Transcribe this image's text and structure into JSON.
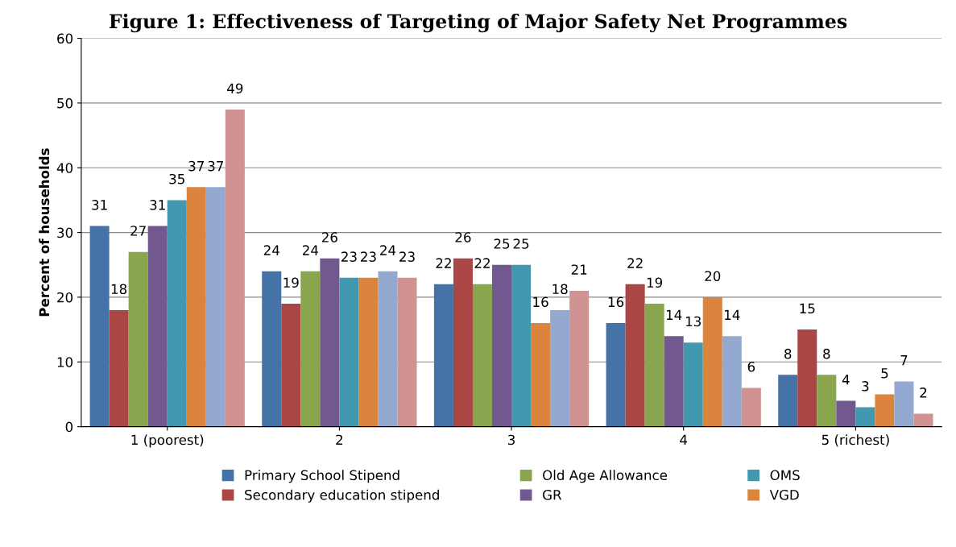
{
  "chart_data": {
    "type": "bar",
    "title": "Figure 1: Effectiveness of Targeting of Major Safety Net Programmes",
    "ylabel": "Percent of households",
    "categories": [
      "1 (poorest)",
      "2",
      "3",
      "4",
      "5 (richest)"
    ],
    "series": [
      {
        "name": "Primary School Stipend",
        "color": "#4572a7",
        "values": [
          31,
          24,
          22,
          16,
          8
        ]
      },
      {
        "name": "Secondary education stipend",
        "color": "#aa4643",
        "values": [
          18,
          19,
          26,
          22,
          15
        ]
      },
      {
        "name": "Old Age Allowance",
        "color": "#89a54e",
        "values": [
          27,
          24,
          22,
          19,
          8
        ]
      },
      {
        "name": "GR",
        "color": "#71588f",
        "values": [
          31,
          26,
          25,
          14,
          4
        ]
      },
      {
        "name": "OMS",
        "color": "#4198af",
        "values": [
          35,
          23,
          25,
          13,
          3
        ]
      },
      {
        "name": "VGD",
        "color": "#db843d",
        "values": [
          37,
          23,
          16,
          20,
          5
        ]
      },
      {
        "color": "#93a9cf",
        "values": [
          37,
          24,
          18,
          14,
          7
        ]
      },
      {
        "color": "#d19392",
        "values": [
          49,
          23,
          21,
          6,
          2
        ]
      }
    ],
    "ylim": [
      0,
      60
    ],
    "yticks": [
      0,
      10,
      20,
      30,
      40,
      50,
      60
    ],
    "grid": "y",
    "legend": "bottom",
    "data_labels": true
  }
}
